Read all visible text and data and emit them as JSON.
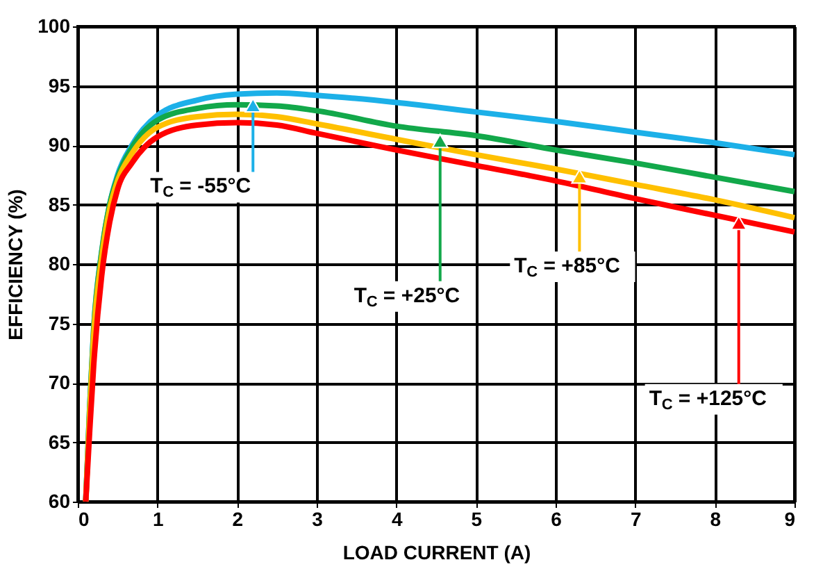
{
  "chart_data": {
    "type": "line",
    "xlabel": "LOAD CURRENT (A)",
    "ylabel": "EFFICIENCY (%)",
    "x": [
      0.1,
      0.15,
      0.2,
      0.3,
      0.4,
      0.5,
      0.68,
      1,
      1.5,
      2,
      2.5,
      3,
      4,
      5,
      6,
      7,
      8,
      9
    ],
    "series": [
      {
        "color": "#1cb0e8",
        "values": [
          60,
          68,
          74.6,
          81,
          85,
          87.5,
          90,
          92.5,
          93.8,
          94.3,
          94.4,
          94.2,
          93.6,
          92.8,
          92,
          91.1,
          90.2,
          89.2
        ]
      },
      {
        "color": "#12a84a",
        "values": [
          60,
          68,
          74.5,
          81,
          85,
          87.3,
          89.8,
          92.1,
          93.1,
          93.4,
          93.3,
          92.9,
          91.6,
          90.8,
          89.6,
          88.5,
          87.3,
          86.1
        ]
      },
      {
        "color": "#ffc000",
        "values": [
          60,
          67.5,
          74,
          80.5,
          84.6,
          87,
          89.3,
          91.5,
          92.4,
          92.6,
          92.4,
          91.8,
          90.5,
          89.2,
          88,
          86.7,
          85.4,
          83.9
        ]
      },
      {
        "color": "#ff0000",
        "values": [
          60,
          66,
          71.5,
          79,
          83.5,
          86.3,
          88.5,
          90.7,
          91.7,
          91.9,
          91.7,
          91,
          89.6,
          88.3,
          87,
          85.5,
          84.1,
          82.7
        ]
      }
    ],
    "annotations": [
      {
        "text": "T$_{C}$ = -55°C",
        "x": 2.2,
        "y": 94.3
      },
      {
        "text": "T$_{C}$ = +25°C",
        "x": 4.55,
        "y": 91.3
      },
      {
        "text": "T$_{C}$ = +85°C",
        "x": 6.3,
        "y": 88.3
      },
      {
        "text": "T$_{C}$ = +125°C",
        "x": 8.3,
        "y": 84.4
      }
    ],
    "xlim": [
      0,
      9
    ],
    "xticks": [
      0,
      1,
      2,
      3,
      4,
      5,
      6,
      7,
      8,
      9
    ],
    "ylim": [
      60,
      100
    ],
    "yticks": [
      60,
      65,
      70,
      75,
      80,
      85,
      90,
      95,
      100
    ],
    "grid": true,
    "marker": "none",
    "line_style": "solid"
  }
}
